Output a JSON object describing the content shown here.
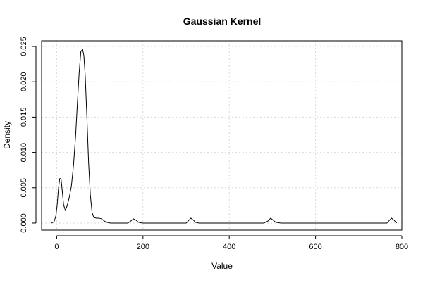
{
  "chart_data": {
    "type": "line",
    "title": "Gaussian Kernel",
    "xlabel": "Value",
    "ylabel": "Density",
    "xlim": [
      -35,
      800
    ],
    "ylim": [
      -0.001,
      0.0258
    ],
    "x_ticks": [
      0,
      200,
      400,
      600,
      800
    ],
    "y_ticks": [
      0.0,
      0.005,
      0.01,
      0.015,
      0.02,
      0.025
    ],
    "x_tick_labels": [
      "0",
      "200",
      "400",
      "600",
      "800"
    ],
    "y_tick_labels": [
      "0.000",
      "0.005",
      "0.010",
      "0.015",
      "0.020",
      "0.025"
    ],
    "grid": true,
    "series": [
      {
        "color": "#000000",
        "x": [
          -12,
          -6,
          -2,
          1,
          4,
          7,
          10,
          13,
          16,
          20,
          24,
          29,
          34,
          39,
          44,
          48,
          52,
          56,
          60,
          63,
          66,
          70,
          74,
          78,
          82,
          86,
          92,
          98,
          104,
          110,
          116,
          125,
          135,
          150,
          165,
          172,
          178,
          184,
          190,
          200,
          260,
          300,
          305,
          311,
          317,
          322,
          330,
          400,
          480,
          490,
          496,
          502,
          508,
          520,
          600,
          700,
          765,
          770,
          776,
          782,
          788
        ],
        "y": [
          0.0,
          0.0002,
          0.001,
          0.0025,
          0.0048,
          0.0063,
          0.0063,
          0.0045,
          0.0026,
          0.0018,
          0.0024,
          0.0036,
          0.0052,
          0.0082,
          0.0125,
          0.017,
          0.0212,
          0.0243,
          0.0246,
          0.0237,
          0.021,
          0.015,
          0.0085,
          0.004,
          0.0015,
          0.0008,
          0.0007,
          0.0007,
          0.0006,
          0.0003,
          0.0001,
          0.0,
          0.0,
          0.0,
          0.0,
          0.0003,
          0.0006,
          0.0004,
          0.0001,
          0.0,
          0.0,
          0.0,
          0.0003,
          0.0007,
          0.0004,
          0.0001,
          0.0,
          0.0,
          0.0,
          0.0003,
          0.0007,
          0.0004,
          0.0001,
          0.0,
          0.0,
          0.0,
          0.0,
          0.0003,
          0.0007,
          0.0004,
          0.0
        ]
      }
    ]
  }
}
